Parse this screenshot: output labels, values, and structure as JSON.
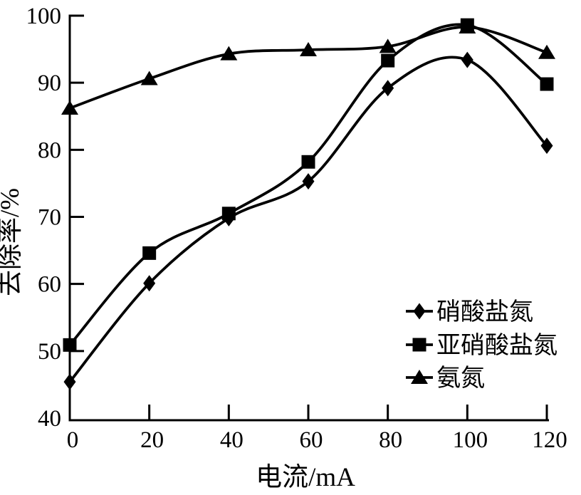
{
  "figure": {
    "background": "#ffffff",
    "ink_color": "#000000"
  },
  "chart_data": {
    "type": "line",
    "title": "",
    "xlabel": "电流/mA",
    "ylabel": "去除率/%",
    "x": [
      0,
      20,
      40,
      60,
      80,
      100,
      120
    ],
    "x_tick_labels": [
      "0",
      "20",
      "40",
      "60",
      "80",
      "100",
      "120"
    ],
    "y_tick_values": [
      40,
      50,
      60,
      70,
      80,
      90,
      100
    ],
    "y_tick_labels": [
      "40",
      "50",
      "60",
      "70",
      "80",
      "90",
      "100"
    ],
    "xlim": [
      0,
      120
    ],
    "ylim": [
      40,
      100
    ],
    "grid": false,
    "line_color": "#000000",
    "curve": "smooth",
    "legend_position": "inside-lower-right",
    "series": [
      {
        "name": "硝酸盐氮",
        "marker": "diamond",
        "values": [
          45.4,
          60.1,
          69.8,
          75.3,
          89.2,
          93.4,
          80.6
        ]
      },
      {
        "name": "亚硝酸盐氮",
        "marker": "square",
        "values": [
          50.9,
          64.6,
          70.5,
          78.2,
          93.3,
          98.6,
          89.8
        ]
      },
      {
        "name": "氨氮",
        "marker": "triangle",
        "values": [
          86.2,
          90.6,
          94.3,
          94.9,
          95.4,
          98.3,
          94.5
        ]
      }
    ]
  }
}
